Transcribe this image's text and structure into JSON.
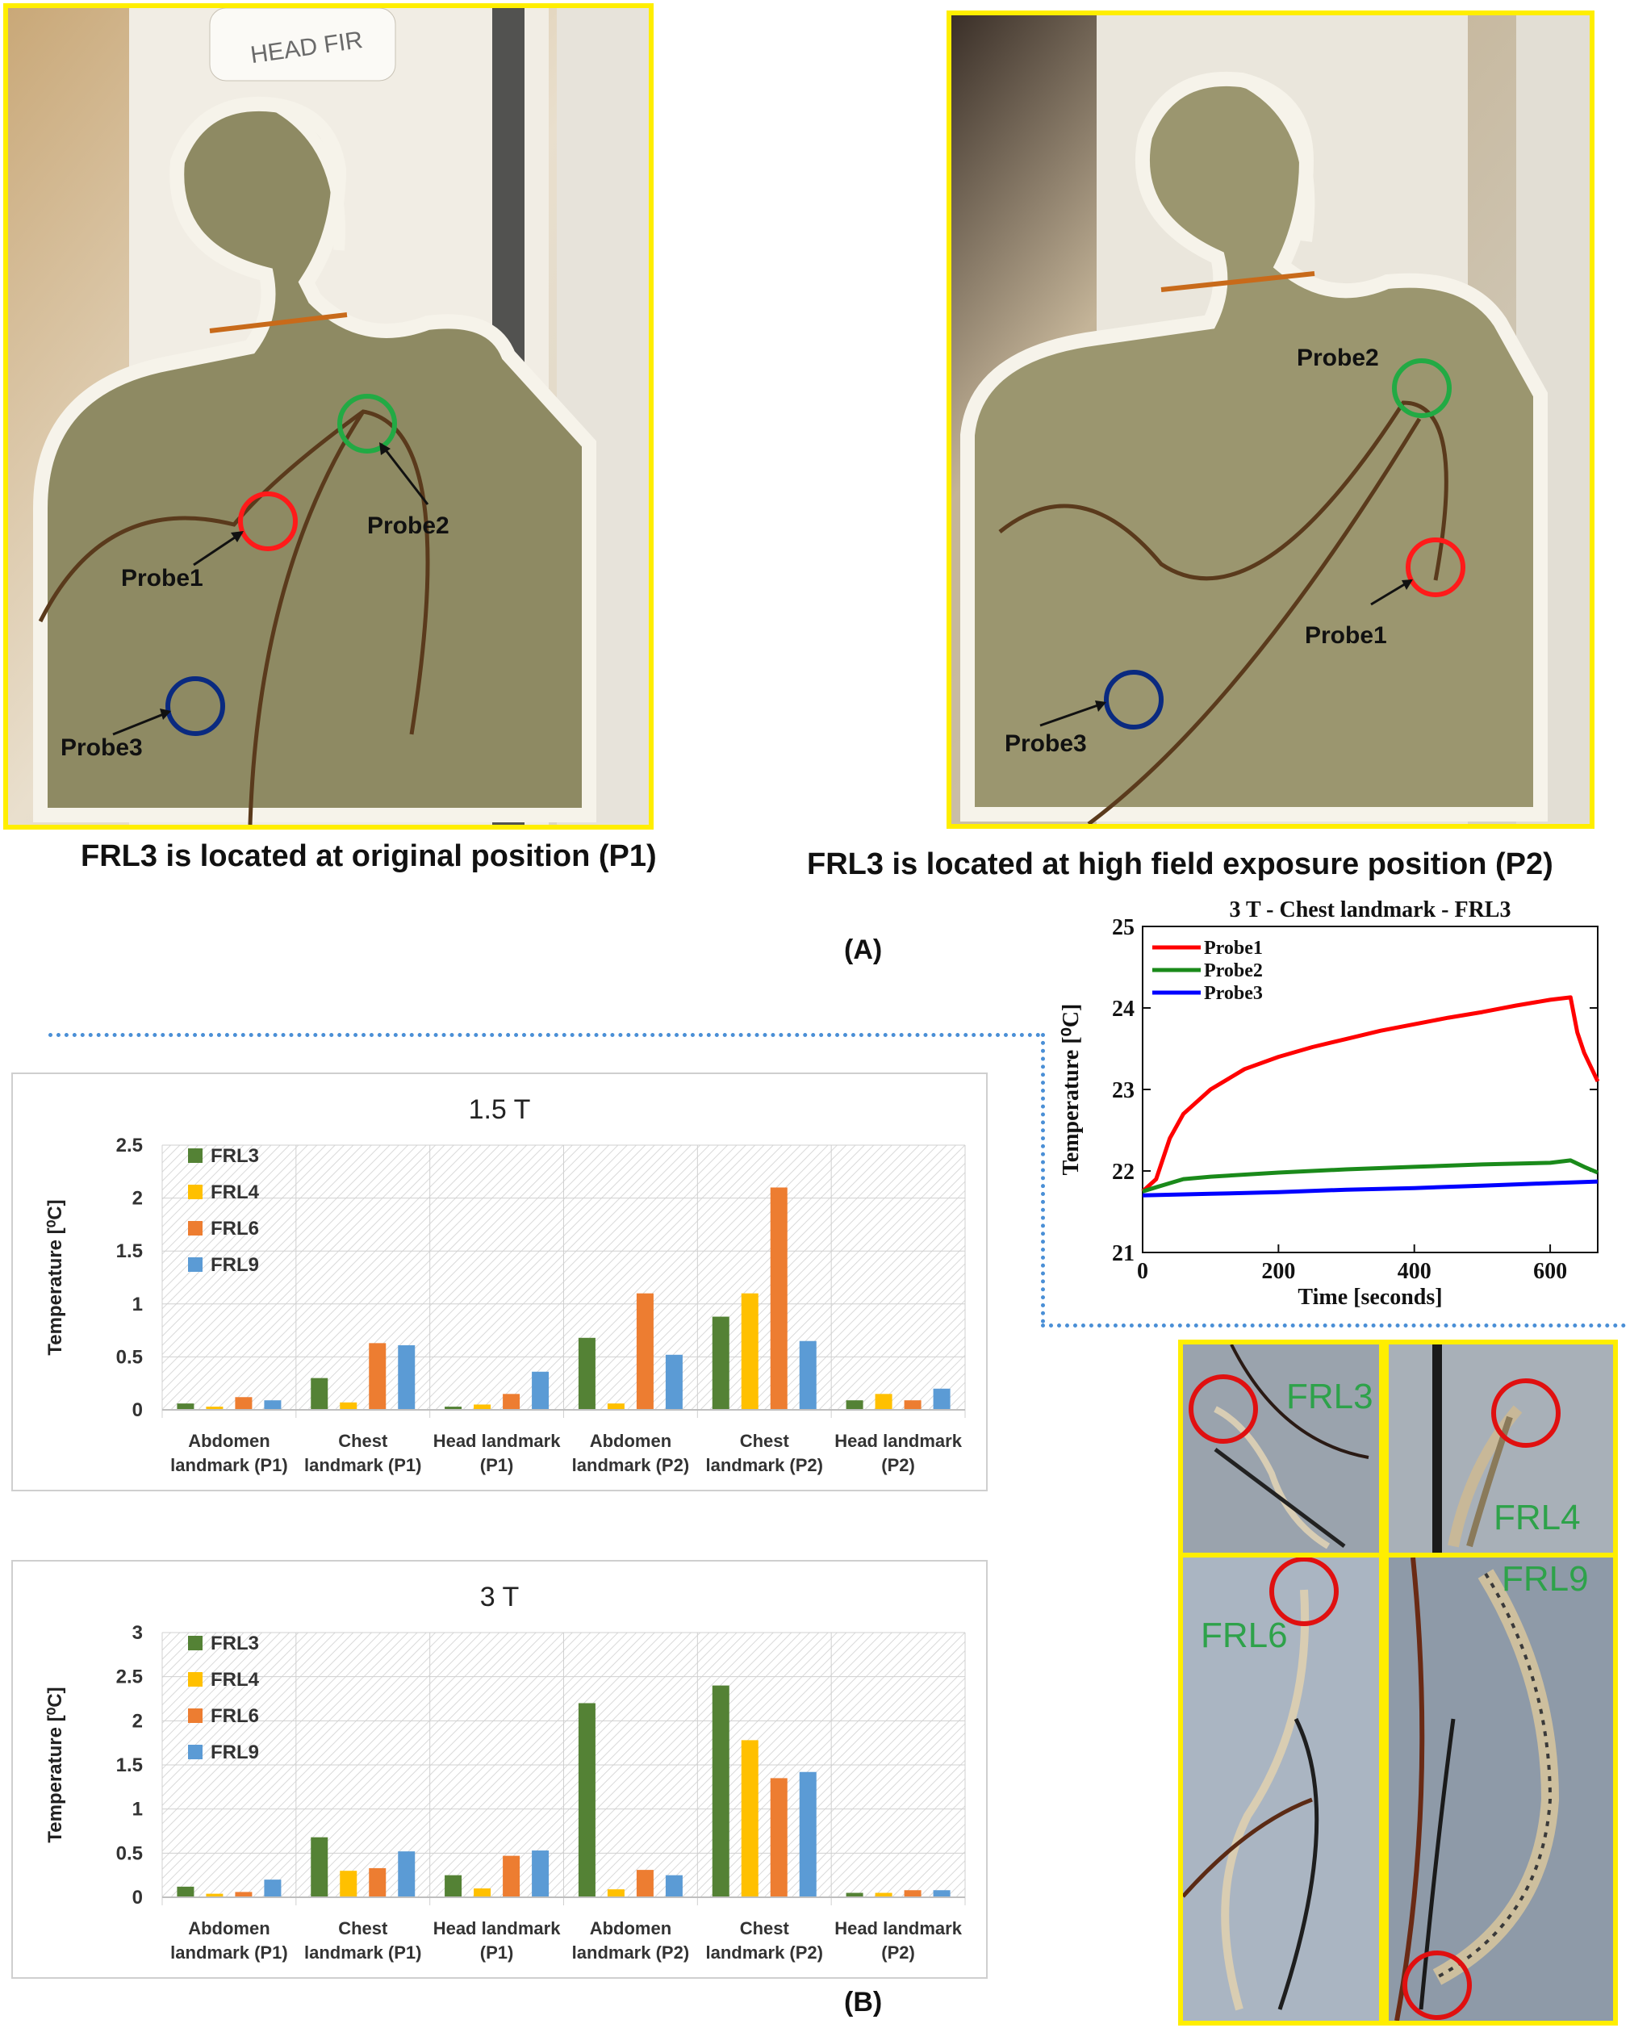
{
  "panel_a": {
    "label": "(A)",
    "photo_left": {
      "caption": "FRL3 is located at original position (P1)",
      "device_label": "HEAD FIR",
      "probes": [
        "Probe1",
        "Probe2",
        "Probe3"
      ]
    },
    "photo_right": {
      "caption": "FRL3 is located at high field exposure position (P2)",
      "probes": [
        "Probe1",
        "Probe2",
        "Probe3"
      ]
    }
  },
  "panel_b": {
    "label": "(B)"
  },
  "thumbs": [
    "FRL3",
    "FRL4",
    "FRL6",
    "FRL9"
  ],
  "colors": {
    "FRL3": "#548235",
    "FRL4": "#ffc000",
    "FRL6": "#ed7d31",
    "FRL9": "#5b9bd5",
    "probe1": "#ff0000",
    "probe2": "#1a8a1a",
    "probe3": "#0000ff",
    "frame": "#ffee00"
  },
  "chart_data": [
    {
      "type": "bar",
      "title": "1.5 T",
      "ylabel": "Temperature [⁰C]",
      "categories": [
        "Abdomen landmark (P1)",
        "Chest landmark (P1)",
        "Head landmark (P1)",
        "Abdomen landmark (P2)",
        "Chest landmark (P2)",
        "Head landmark (P2)"
      ],
      "ylim": [
        0,
        2.5
      ],
      "yticks": [
        "0",
        "0.5",
        "1",
        "1.5",
        "2",
        "2.5"
      ],
      "legend": "top-left",
      "series": [
        {
          "name": "FRL3",
          "values": [
            0.06,
            0.3,
            0.03,
            0.68,
            0.88,
            0.09
          ]
        },
        {
          "name": "FRL4",
          "values": [
            0.03,
            0.07,
            0.05,
            0.06,
            1.1,
            0.15
          ]
        },
        {
          "name": "FRL6",
          "values": [
            0.12,
            0.63,
            0.15,
            1.1,
            2.1,
            0.09
          ]
        },
        {
          "name": "FRL9",
          "values": [
            0.09,
            0.61,
            0.36,
            0.52,
            0.65,
            0.2
          ]
        }
      ]
    },
    {
      "type": "bar",
      "title": "3 T",
      "ylabel": "Temperature [⁰C]",
      "categories": [
        "Abdomen landmark (P1)",
        "Chest landmark (P1)",
        "Head landmark (P1)",
        "Abdomen landmark (P2)",
        "Chest landmark (P2)",
        "Head landmark (P2)"
      ],
      "ylim": [
        0,
        3
      ],
      "yticks": [
        "0",
        "0.5",
        "1",
        "1.5",
        "2",
        "2.5",
        "3"
      ],
      "legend": "top-left",
      "series": [
        {
          "name": "FRL3",
          "values": [
            0.12,
            0.68,
            0.25,
            2.2,
            2.4,
            0.05
          ]
        },
        {
          "name": "FRL4",
          "values": [
            0.04,
            0.3,
            0.1,
            0.09,
            1.78,
            0.05
          ]
        },
        {
          "name": "FRL6",
          "values": [
            0.06,
            0.33,
            0.47,
            0.31,
            1.35,
            0.08
          ]
        },
        {
          "name": "FRL9",
          "values": [
            0.2,
            0.52,
            0.53,
            0.25,
            1.42,
            0.08
          ]
        }
      ]
    },
    {
      "type": "line",
      "title": "3 T - Chest landmark - FRL3",
      "xlabel": "Time [seconds]",
      "ylabel": "Temperature [⁰C]",
      "xlim": [
        0,
        670
      ],
      "ylim": [
        21,
        25
      ],
      "xticks": [
        "0",
        "200",
        "400",
        "600"
      ],
      "yticks": [
        "21",
        "22",
        "23",
        "24",
        "25"
      ],
      "legend": "top-left",
      "series": [
        {
          "name": "Probe1",
          "x": [
            0,
            20,
            40,
            60,
            100,
            150,
            200,
            250,
            300,
            350,
            400,
            450,
            500,
            550,
            600,
            630,
            640,
            650,
            670
          ],
          "y": [
            21.75,
            21.9,
            22.4,
            22.7,
            23.0,
            23.25,
            23.4,
            23.52,
            23.62,
            23.72,
            23.8,
            23.88,
            23.95,
            24.03,
            24.1,
            24.13,
            23.7,
            23.45,
            23.1
          ]
        },
        {
          "name": "Probe2",
          "x": [
            0,
            20,
            40,
            60,
            100,
            200,
            300,
            400,
            500,
            600,
            630,
            650,
            670
          ],
          "y": [
            21.75,
            21.8,
            21.85,
            21.9,
            21.93,
            21.98,
            22.02,
            22.05,
            22.08,
            22.1,
            22.13,
            22.05,
            21.98
          ]
        },
        {
          "name": "Probe3",
          "x": [
            0,
            100,
            200,
            300,
            400,
            500,
            600,
            670
          ],
          "y": [
            21.7,
            21.72,
            21.74,
            21.77,
            21.79,
            21.82,
            21.85,
            21.87
          ]
        }
      ]
    }
  ]
}
